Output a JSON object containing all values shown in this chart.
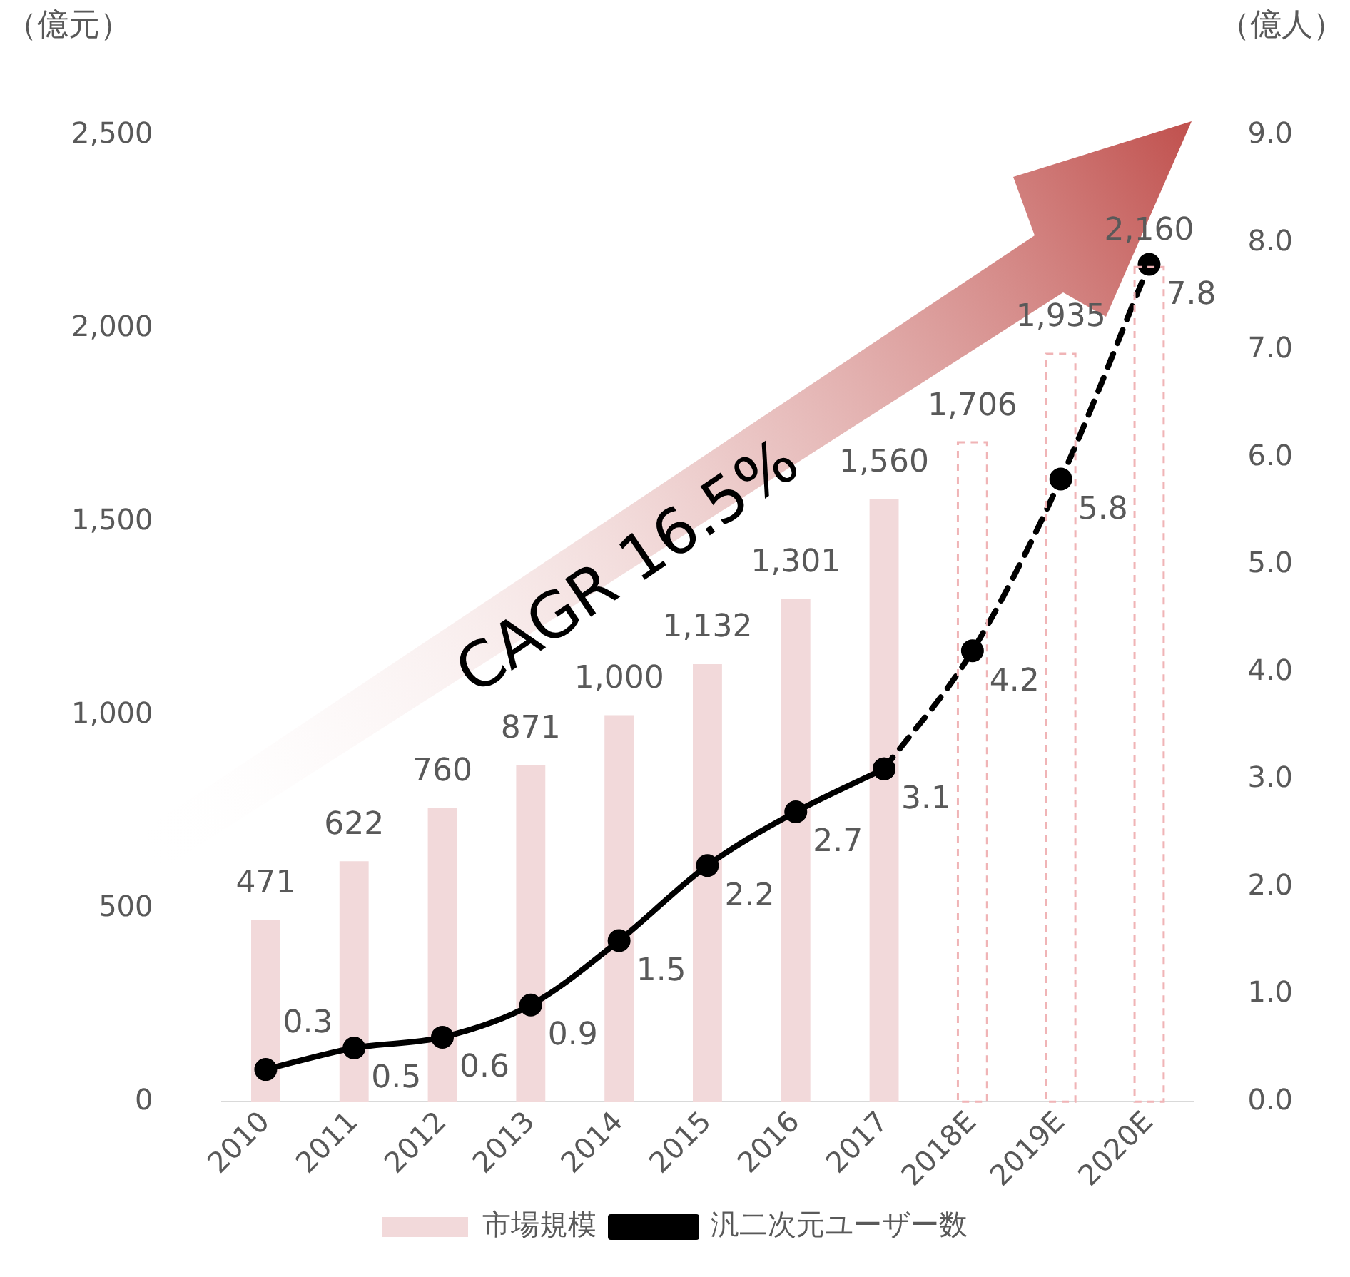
{
  "chart_data": {
    "type": "bar",
    "ylabel": "（億元）",
    "y2label": "（億人）",
    "categories": [
      "2010",
      "2011",
      "2012",
      "2013",
      "2014",
      "2015",
      "2016",
      "2017",
      "2018E",
      "2019E",
      "2020E"
    ],
    "series": [
      {
        "name": "市場規模",
        "color": "#f2d9da",
        "values": [
          471,
          622,
          760,
          871,
          1000,
          1132,
          1301,
          1560,
          null,
          null,
          null
        ],
        "value_labels": [
          "471",
          "622",
          "760",
          "871",
          "1,000",
          "1,132",
          "1,301",
          "1,560",
          null,
          null,
          null
        ]
      },
      {
        "color": "#f0b4b6",
        "line_style": "dashed",
        "values": [
          null,
          null,
          null,
          null,
          null,
          null,
          null,
          null,
          1706,
          1935,
          2160
        ],
        "value_labels": [
          null,
          null,
          null,
          null,
          null,
          null,
          null,
          null,
          "1,706",
          "1,935",
          "2,160"
        ]
      },
      {
        "name": "汎二次元ユーザー数",
        "type": "line",
        "axis": "y2",
        "color": "#000000",
        "line_style": "solid",
        "marker": "circle",
        "values": [
          0.3,
          0.5,
          0.6,
          0.9,
          1.5,
          2.2,
          2.7,
          3.1,
          null,
          null,
          null
        ],
        "value_labels": [
          "0.3",
          "0.5",
          "0.6",
          "0.9",
          "1.5",
          "2.2",
          "2.7",
          "3.1",
          null,
          null,
          null
        ]
      },
      {
        "type": "line",
        "axis": "y2",
        "color": "#000000",
        "line_style": "dashed",
        "marker": "circle",
        "values": [
          null,
          null,
          null,
          null,
          null,
          null,
          null,
          3.1,
          4.2,
          5.8,
          7.8
        ],
        "value_labels": [
          null,
          null,
          null,
          null,
          null,
          null,
          null,
          null,
          "4.2",
          "5.8",
          "7.8"
        ]
      }
    ],
    "ylim": [
      0,
      2500
    ],
    "yticks": [
      {
        "value": 0,
        "label": "0"
      },
      {
        "value": 500,
        "label": "500"
      },
      {
        "value": 1000,
        "label": "1,000"
      },
      {
        "value": 1500,
        "label": "1,500"
      },
      {
        "value": 2000,
        "label": "2,000"
      },
      {
        "value": 2500,
        "label": "2,500"
      }
    ],
    "y2lim": [
      0,
      9
    ],
    "y2ticks": [
      {
        "value": 0,
        "label": "0.0"
      },
      {
        "value": 1,
        "label": "1.0"
      },
      {
        "value": 2,
        "label": "2.0"
      },
      {
        "value": 3,
        "label": "3.0"
      },
      {
        "value": 4,
        "label": "4.0"
      },
      {
        "value": 5,
        "label": "5.0"
      },
      {
        "value": 6,
        "label": "6.0"
      },
      {
        "value": 7,
        "label": "7.0"
      },
      {
        "value": 8,
        "label": "8.0"
      },
      {
        "value": 9,
        "label": "9.0"
      }
    ],
    "grid": false,
    "legend": "bottom",
    "annotations": [
      "CAGR 16.5%"
    ]
  }
}
